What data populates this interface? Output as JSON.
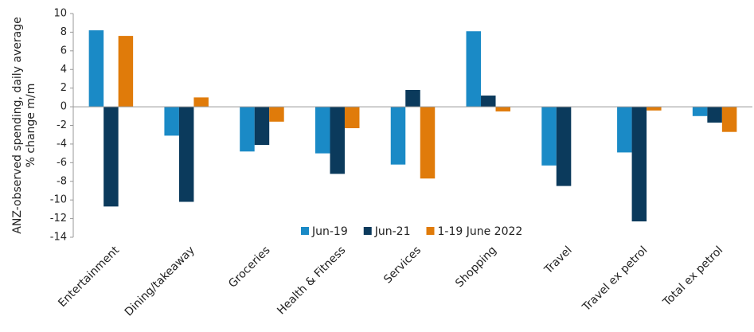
{
  "chart_data": {
    "type": "bar",
    "ylabel": [
      "ANZ-observed spending, daily average",
      "% change m/m"
    ],
    "categories": [
      "Entertainment",
      "Dining/takeaway",
      "Groceries",
      "Health & Fitness",
      "Services",
      "Shopping",
      "Travel",
      "Travel ex petrol",
      "Total ex petrol"
    ],
    "series": [
      {
        "name": "Jun-19",
        "color": "#1a8ac6",
        "values": [
          8.2,
          -3.1,
          -4.8,
          -5.0,
          -6.2,
          8.1,
          -6.3,
          -4.9,
          -1.0
        ]
      },
      {
        "name": "Jun-21",
        "color": "#0b3a5c",
        "values": [
          -10.7,
          -10.2,
          -4.1,
          -7.2,
          1.8,
          1.2,
          -8.5,
          -12.3,
          -1.7
        ]
      },
      {
        "name": "1-19 June 2022",
        "color": "#e07b0a",
        "values": [
          7.6,
          1.0,
          -1.6,
          -2.3,
          -7.7,
          -0.5,
          null,
          -0.4,
          -2.7
        ]
      }
    ],
    "ylim": [
      -14,
      10
    ],
    "yticks": [
      -14,
      -12,
      -10,
      -8,
      -6,
      -4,
      -2,
      0,
      2,
      4,
      6,
      8,
      10
    ],
    "legend": "bottom"
  }
}
